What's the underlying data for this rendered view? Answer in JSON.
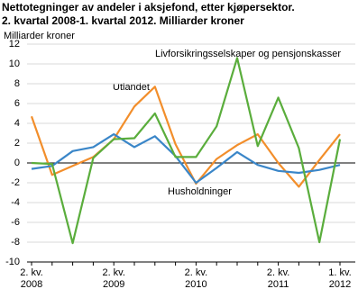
{
  "chart_data": {
    "type": "line",
    "title": "Nettotegninger av andeler i aksjefond, etter kjøpersektor.",
    "subtitle": "2. kvartal 2008-1. kvartal 2012. Milliarder kroner",
    "y_label": "Milliarder kroner",
    "categories": [
      [
        "2. kv.",
        "2008"
      ],
      null,
      null,
      null,
      [
        "2. kv.",
        "2009"
      ],
      null,
      null,
      null,
      [
        "2. kv.",
        "2010"
      ],
      null,
      null,
      null,
      [
        "2. kv.",
        "2011"
      ],
      null,
      null,
      [
        "1. kv.",
        "2012"
      ]
    ],
    "series": [
      {
        "name": "Utlandet",
        "color": "#f28e2b",
        "values": [
          4.7,
          -1.2,
          -0.3,
          0.6,
          2.4,
          5.7,
          7.7,
          1.9,
          -2.1,
          0.4,
          1.8,
          2.9,
          0.0,
          -2.4,
          0.3,
          2.9
        ]
      },
      {
        "name": "Husholdninger",
        "color": "#3a86c8",
        "values": [
          -0.6,
          -0.3,
          1.2,
          1.6,
          2.9,
          1.6,
          2.7,
          0.7,
          -2.0,
          -0.5,
          1.1,
          -0.2,
          -0.8,
          -1.0,
          -0.7,
          -0.2
        ]
      },
      {
        "name": "Livforsikringsselskaper og pensjonskasser",
        "color": "#5aad3c",
        "values": [
          0.0,
          -0.1,
          -8.1,
          0.5,
          2.4,
          2.5,
          5.0,
          0.6,
          0.6,
          3.7,
          10.6,
          1.7,
          6.6,
          1.5,
          -8.0,
          2.4
        ]
      }
    ],
    "ylim": [
      -10,
      12
    ],
    "yticks": [
      -10,
      -8,
      -6,
      -4,
      -2,
      0,
      2,
      4,
      6,
      8,
      10,
      12
    ],
    "grid": true
  }
}
